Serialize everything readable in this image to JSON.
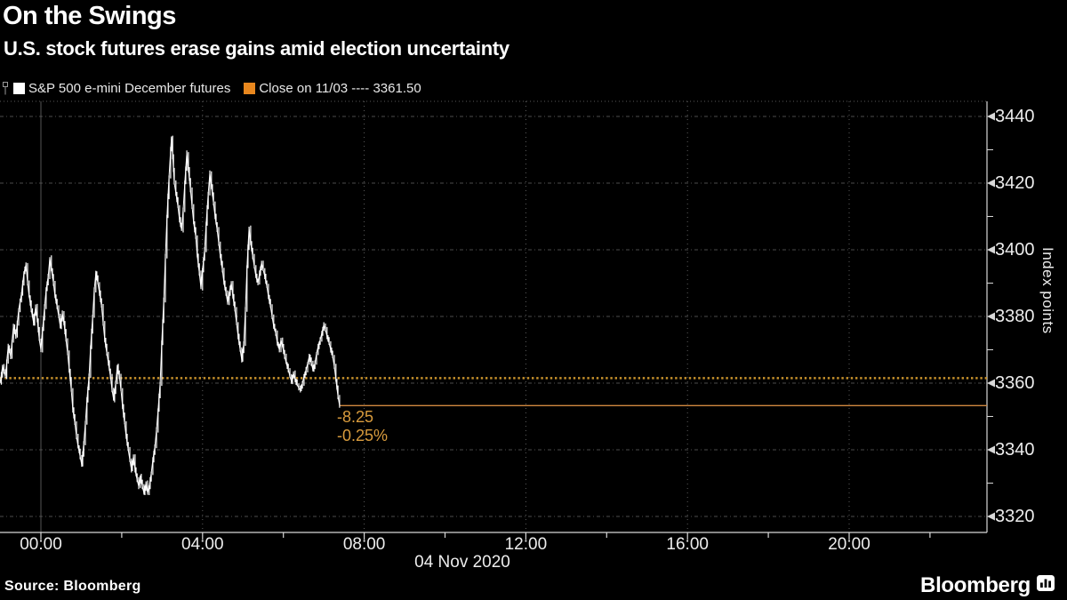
{
  "header": {
    "title": "On the Swings",
    "subtitle": "U.S. stock futures erase gains amid election uncertainty"
  },
  "legend": {
    "series": [
      {
        "icon": "ohlc-series-icon",
        "swatch_color": "#ffffff",
        "label": "S&P 500 e-mini December futures"
      },
      {
        "icon": "orange-square",
        "swatch_color": "#e8871e",
        "label": "Close on 11/03 ---- 3361.50"
      }
    ]
  },
  "annotation": {
    "net_change": "-8.25",
    "pct_change": "-0.25%"
  },
  "footer": {
    "source": "Source: Bloomberg",
    "brand": "Bloomberg",
    "brand_icon": "bloomberg-chart-bubble-icon"
  },
  "colors": {
    "background": "#000000",
    "text": "#ececec",
    "grid": "#6e6e6e",
    "axis": "#d8d8d8",
    "series_white": "#ffffff",
    "legend_orange_swatch": "#e8871e",
    "close_dotted_orange": "#c8922c",
    "last_price_orange": "#d08840",
    "annotation_orange": "#d89b3d"
  },
  "chart_data": {
    "type": "line",
    "title": "On the Swings",
    "subtitle": "U.S. stock futures erase gains amid election uncertainty",
    "series_name": "S&P 500 e-mini December futures",
    "ylabel": "Index points",
    "xlabel": "04 Nov 2020",
    "x_date_label": "04 Nov 2020",
    "ylim": [
      3320,
      3440
    ],
    "y_ticks": [
      3440,
      3420,
      3400,
      3380,
      3360,
      3340,
      3320
    ],
    "y_minor_step": 10,
    "x_tick_labels": [
      "00:00",
      "04:00",
      "08:00",
      "12:00",
      "16:00",
      "20:00"
    ],
    "x_tick_hours": [
      0,
      4,
      8,
      12,
      16,
      20
    ],
    "x_minor_every_hours": 2,
    "x_axis_span_hours": [
      -1.0,
      23.4
    ],
    "grid": true,
    "legend_position": "top-left",
    "close_line": {
      "label": "Close on 11/03",
      "value": 3361.5,
      "style": "dotted"
    },
    "last_price": 3353.25,
    "net_change": -8.25,
    "pct_change": -0.25,
    "price_path_hour_price": [
      [
        -1.01,
        3360
      ],
      [
        -0.95,
        3365
      ],
      [
        -0.88,
        3362
      ],
      [
        -0.81,
        3371
      ],
      [
        -0.75,
        3368
      ],
      [
        -0.68,
        3377
      ],
      [
        -0.62,
        3374
      ],
      [
        -0.55,
        3382
      ],
      [
        -0.48,
        3387
      ],
      [
        -0.42,
        3393
      ],
      [
        -0.37,
        3395.5
      ],
      [
        -0.33,
        3390
      ],
      [
        -0.29,
        3386
      ],
      [
        -0.24,
        3382
      ],
      [
        -0.18,
        3378
      ],
      [
        -0.13,
        3383
      ],
      [
        -0.09,
        3379
      ],
      [
        -0.04,
        3373
      ],
      [
        0,
        3370
      ],
      [
        0.04,
        3376
      ],
      [
        0.09,
        3383
      ],
      [
        0.13,
        3388
      ],
      [
        0.18,
        3392
      ],
      [
        0.22,
        3397.5
      ],
      [
        0.26,
        3394
      ],
      [
        0.31,
        3390
      ],
      [
        0.35,
        3386
      ],
      [
        0.4,
        3383
      ],
      [
        0.44,
        3380
      ],
      [
        0.48,
        3377
      ],
      [
        0.53,
        3381
      ],
      [
        0.57,
        3378
      ],
      [
        0.62,
        3373
      ],
      [
        0.66,
        3369
      ],
      [
        0.7,
        3364
      ],
      [
        0.75,
        3358
      ],
      [
        0.79,
        3352
      ],
      [
        0.84,
        3348
      ],
      [
        0.88,
        3344
      ],
      [
        0.92,
        3341
      ],
      [
        0.97,
        3338
      ],
      [
        1.01,
        3335.5
      ],
      [
        1.06,
        3342
      ],
      [
        1.1,
        3348
      ],
      [
        1.14,
        3355
      ],
      [
        1.19,
        3362
      ],
      [
        1.23,
        3371
      ],
      [
        1.28,
        3380
      ],
      [
        1.32,
        3388
      ],
      [
        1.36,
        3393
      ],
      [
        1.41,
        3390
      ],
      [
        1.45,
        3387
      ],
      [
        1.5,
        3383
      ],
      [
        1.54,
        3378
      ],
      [
        1.58,
        3373
      ],
      [
        1.63,
        3369
      ],
      [
        1.67,
        3366
      ],
      [
        1.72,
        3362
      ],
      [
        1.76,
        3358
      ],
      [
        1.8,
        3355
      ],
      [
        1.85,
        3360
      ],
      [
        1.89,
        3365
      ],
      [
        1.94,
        3362
      ],
      [
        1.98,
        3358
      ],
      [
        2.02,
        3353
      ],
      [
        2.07,
        3348
      ],
      [
        2.11,
        3344
      ],
      [
        2.16,
        3340
      ],
      [
        2.2,
        3337
      ],
      [
        2.24,
        3334
      ],
      [
        2.29,
        3338
      ],
      [
        2.33,
        3334
      ],
      [
        2.38,
        3331
      ],
      [
        2.42,
        3329
      ],
      [
        2.46,
        3332
      ],
      [
        2.51,
        3329
      ],
      [
        2.55,
        3327
      ],
      [
        2.6,
        3330
      ],
      [
        2.64,
        3327
      ],
      [
        2.68,
        3329
      ],
      [
        2.73,
        3333
      ],
      [
        2.77,
        3337
      ],
      [
        2.82,
        3341
      ],
      [
        2.86,
        3346
      ],
      [
        2.9,
        3352
      ],
      [
        2.95,
        3360
      ],
      [
        2.99,
        3372
      ],
      [
        3.04,
        3385
      ],
      [
        3.08,
        3398
      ],
      [
        3.12,
        3410
      ],
      [
        3.17,
        3422
      ],
      [
        3.21,
        3430
      ],
      [
        3.23,
        3433.5
      ],
      [
        3.26,
        3428
      ],
      [
        3.28,
        3424
      ],
      [
        3.3,
        3420
      ],
      [
        3.34,
        3417
      ],
      [
        3.39,
        3413
      ],
      [
        3.43,
        3409
      ],
      [
        3.48,
        3406
      ],
      [
        3.52,
        3412
      ],
      [
        3.56,
        3420
      ],
      [
        3.61,
        3429
      ],
      [
        3.65,
        3424
      ],
      [
        3.7,
        3418
      ],
      [
        3.74,
        3413
      ],
      [
        3.78,
        3408
      ],
      [
        3.83,
        3404
      ],
      [
        3.87,
        3398
      ],
      [
        3.92,
        3393
      ],
      [
        3.96,
        3388.5
      ],
      [
        4.0,
        3394
      ],
      [
        4.05,
        3400
      ],
      [
        4.09,
        3408
      ],
      [
        4.14,
        3417
      ],
      [
        4.18,
        3423
      ],
      [
        4.22,
        3419
      ],
      [
        4.27,
        3414
      ],
      [
        4.31,
        3410
      ],
      [
        4.36,
        3406
      ],
      [
        4.4,
        3402
      ],
      [
        4.44,
        3398
      ],
      [
        4.49,
        3394
      ],
      [
        4.53,
        3390
      ],
      [
        4.58,
        3387
      ],
      [
        4.62,
        3384
      ],
      [
        4.66,
        3387
      ],
      [
        4.71,
        3390
      ],
      [
        4.75,
        3386
      ],
      [
        4.8,
        3382
      ],
      [
        4.84,
        3378
      ],
      [
        4.88,
        3374
      ],
      [
        4.93,
        3370
      ],
      [
        4.97,
        3367
      ],
      [
        5.02,
        3372
      ],
      [
        5.06,
        3382
      ],
      [
        5.1,
        3395
      ],
      [
        5.15,
        3406.5
      ],
      [
        5.19,
        3402
      ],
      [
        5.24,
        3398
      ],
      [
        5.28,
        3395
      ],
      [
        5.32,
        3392
      ],
      [
        5.37,
        3390
      ],
      [
        5.41,
        3393
      ],
      [
        5.46,
        3396
      ],
      [
        5.5,
        3394
      ],
      [
        5.54,
        3392
      ],
      [
        5.59,
        3389
      ],
      [
        5.63,
        3386
      ],
      [
        5.68,
        3383
      ],
      [
        5.72,
        3380
      ],
      [
        5.76,
        3377
      ],
      [
        5.81,
        3375
      ],
      [
        5.85,
        3372
      ],
      [
        5.9,
        3370
      ],
      [
        5.94,
        3373
      ],
      [
        5.98,
        3371
      ],
      [
        6.03,
        3368
      ],
      [
        6.07,
        3366
      ],
      [
        6.12,
        3364
      ],
      [
        6.16,
        3362
      ],
      [
        6.2,
        3360.5
      ],
      [
        6.25,
        3363
      ],
      [
        6.29,
        3361
      ],
      [
        6.34,
        3359.5
      ],
      [
        6.38,
        3358.5
      ],
      [
        6.42,
        3358
      ],
      [
        6.47,
        3360
      ],
      [
        6.51,
        3362
      ],
      [
        6.56,
        3364
      ],
      [
        6.6,
        3366
      ],
      [
        6.64,
        3368
      ],
      [
        6.69,
        3366
      ],
      [
        6.73,
        3364
      ],
      [
        6.78,
        3366
      ],
      [
        6.82,
        3369
      ],
      [
        6.86,
        3371
      ],
      [
        6.91,
        3373
      ],
      [
        6.95,
        3375
      ],
      [
        7.0,
        3377.5
      ],
      [
        7.04,
        3376
      ],
      [
        7.08,
        3374
      ],
      [
        7.13,
        3372
      ],
      [
        7.17,
        3370
      ],
      [
        7.22,
        3368
      ],
      [
        7.26,
        3365
      ],
      [
        7.3,
        3361
      ],
      [
        7.35,
        3356
      ],
      [
        7.39,
        3353.25
      ]
    ]
  }
}
